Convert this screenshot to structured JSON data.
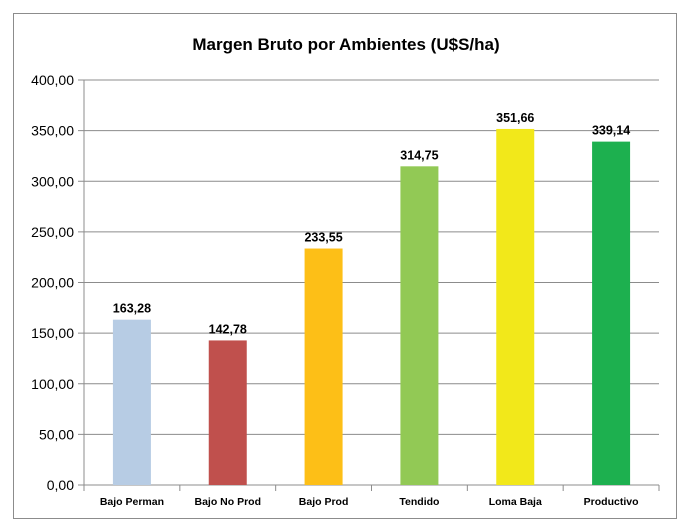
{
  "chart_data": {
    "type": "bar",
    "title": "Margen Bruto por Ambientes  (U$S/ha)",
    "xlabel": "",
    "ylabel": "",
    "categories": [
      "Bajo Perman",
      "Bajo No Prod",
      "Bajo Prod",
      "Tendido",
      "Loma Baja",
      "Productivo"
    ],
    "values": [
      163.28,
      142.78,
      233.55,
      314.75,
      351.66,
      339.14
    ],
    "value_labels": [
      "163,28",
      "142,78",
      "233,55",
      "314,75",
      "351,66",
      "339,14"
    ],
    "colors": [
      "#b7cce4",
      "#c0504d",
      "#fdbf17",
      "#92c955",
      "#f2e81a",
      "#1db04f"
    ],
    "ylim": [
      0,
      400
    ],
    "yticks": [
      0,
      50,
      100,
      150,
      200,
      250,
      300,
      350,
      400
    ],
    "ytick_labels": [
      "0,00",
      "50,00",
      "100,00",
      "150,00",
      "200,00",
      "250,00",
      "300,00",
      "350,00",
      "400,00"
    ],
    "grid": true,
    "legend": "none",
    "gridline_color": "#8c8c8c"
  }
}
